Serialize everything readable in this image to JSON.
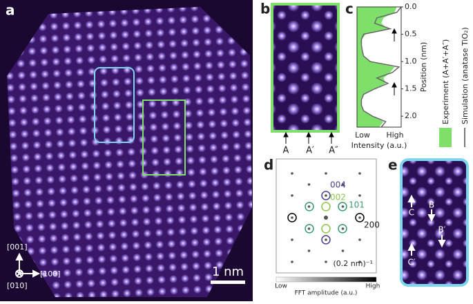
{
  "panels": {
    "a": {
      "label": "a",
      "directions": [
        "[001]",
        "[100]",
        "[010]"
      ],
      "scale_bar": "1 nm"
    },
    "b": {
      "label": "b",
      "columns": [
        "A",
        "A′",
        "A″"
      ]
    },
    "c": {
      "label": "c",
      "y_label": "Position (nm)",
      "x_label": "Intensity (a.u.)",
      "x_ticks": [
        "Low",
        "High"
      ],
      "ylim": [
        0,
        2.2
      ],
      "xlim": [
        0,
        1
      ],
      "yticks": [
        {
          "value": 0,
          "label": "0.0"
        },
        0.5,
        {
          "value": 1,
          "label": "1.0"
        },
        1.5,
        {
          "value": 2,
          "label": "2.0"
        }
      ],
      "position": [
        0,
        0.1,
        0.2,
        0.3,
        0.4,
        0.5,
        0.6,
        0.7,
        0.8,
        0.9,
        1,
        1.1,
        1.2,
        1.3,
        1.4,
        1.5,
        1.6,
        1.7,
        1.8,
        1.9,
        2,
        2.1,
        2.2
      ],
      "experiment": [
        0.9,
        0.85,
        0.6,
        0.55,
        0.7,
        0.2,
        0.1,
        0.1,
        0.12,
        0.15,
        0.3,
        0.85,
        0.75,
        0.6,
        0.65,
        0.4,
        0.15,
        0.1,
        0.1,
        0.15,
        0.35,
        0.6,
        0.5
      ],
      "simulation": [
        1,
        0.9,
        0.45,
        0.4,
        0.75,
        0.15,
        0.1,
        0.1,
        0.12,
        0.15,
        0.3,
        0.95,
        0.8,
        0.45,
        0.7,
        0.4,
        0.15,
        0.1,
        0.1,
        0.15,
        0.35,
        0.65,
        0.55
      ],
      "legend": [
        "Experiment (A+A′+A″)",
        "Simulation (anatase TiO₂)"
      ]
    },
    "d": {
      "label": "d",
      "spots": [
        "004",
        "002",
        "101",
        "200"
      ],
      "scale": "(0.2 nm)⁻¹",
      "colorbar": {
        "low": "Low",
        "high": "High",
        "label": "FFT amplitude (a.u.)"
      }
    },
    "e": {
      "label": "e",
      "markers": [
        "C",
        "B",
        "B′",
        "C′"
      ]
    }
  }
}
